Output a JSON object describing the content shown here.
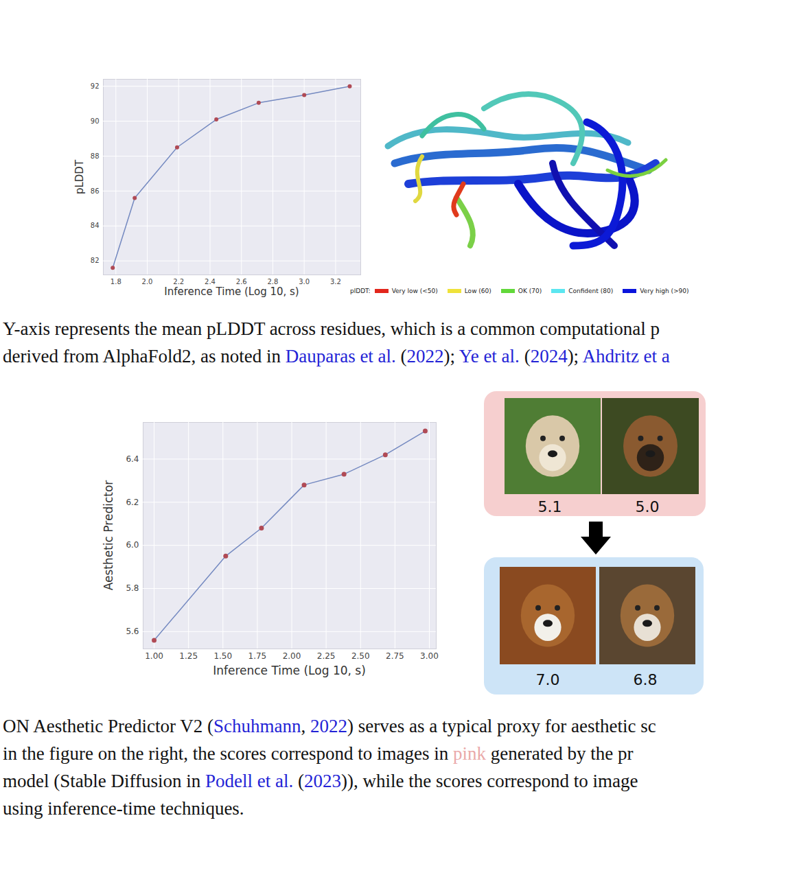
{
  "chart_data": [
    {
      "type": "line",
      "x": [
        1.78,
        1.92,
        2.19,
        2.44,
        2.71,
        3.0,
        3.29
      ],
      "values": [
        81.6,
        85.6,
        88.5,
        90.1,
        91.05,
        91.5,
        92.0
      ],
      "xlabel": "Inference Time (Log 10, s)",
      "ylabel": "pLDDT",
      "xlim": [
        1.72,
        3.36
      ],
      "ylim": [
        81.2,
        92.4
      ],
      "xticks": [
        1.8,
        {
          "value": 2,
          "label": "2.0"
        },
        2.2,
        2.4,
        2.6,
        2.8,
        {
          "value": 3,
          "label": "3.0"
        },
        3.2
      ],
      "yticks": [
        82,
        84,
        86,
        88,
        90,
        92
      ],
      "grid": true,
      "color": "#7489c0",
      "marker": "circle"
    },
    {
      "type": "line",
      "x": [
        1.0,
        1.52,
        1.78,
        2.09,
        2.38,
        2.68,
        2.97
      ],
      "values": [
        5.56,
        5.95,
        6.08,
        6.28,
        6.33,
        6.42,
        6.53
      ],
      "xlabel": "Inference Time (Log 10, s)",
      "ylabel": "Aesthetic Predictor",
      "xlim": [
        0.92,
        3.05
      ],
      "ylim": [
        5.52,
        6.57
      ],
      "xticks": [
        {
          "value": 1,
          "label": "1.00"
        },
        1.25,
        {
          "value": 1.5,
          "label": "1.50"
        },
        1.75,
        {
          "value": 2,
          "label": "2.00"
        },
        2.25,
        {
          "value": 2.5,
          "label": "2.50"
        },
        2.75,
        {
          "value": 3,
          "label": "3.00"
        }
      ],
      "yticks": [
        5.6,
        5.8,
        {
          "value": 6,
          "label": "6.0"
        },
        6.2,
        6.4
      ],
      "grid": true,
      "color": "#7489c0",
      "marker": "circle"
    }
  ],
  "protein_legend": {
    "title": "plDDT:",
    "items": [
      {
        "label": "Very low (<50)",
        "color": "#e2261c"
      },
      {
        "label": "Low (60)",
        "color": "#efe23a"
      },
      {
        "label": "OK (70)",
        "color": "#62d83a"
      },
      {
        "label": "Confident (80)",
        "color": "#5ce6f0"
      },
      {
        "label": "Very high (>90)",
        "color": "#0a14dc"
      }
    ]
  },
  "dog_panel": {
    "before_scores": [
      "5.1",
      "5.0"
    ],
    "after_scores": [
      "7.0",
      "6.8"
    ]
  },
  "captions": [
    [
      [
        {
          "text": "Y-axis represents the mean pLDDT across residues, which is a common computational p"
        }
      ],
      [
        {
          "text": "derived from AlphaFold2, as noted in "
        },
        {
          "text": "Dauparas et al.",
          "style": "cite"
        },
        {
          "text": " ("
        },
        {
          "text": "2022",
          "style": "cite"
        },
        {
          "text": "); "
        },
        {
          "text": "Ye et al.",
          "style": "cite"
        },
        {
          "text": " ("
        },
        {
          "text": "2024",
          "style": "cite"
        },
        {
          "text": "); "
        },
        {
          "text": "Ahdritz et a",
          "style": "cite"
        }
      ]
    ],
    [
      [
        {
          "text": "ON Aesthetic Predictor V2 ("
        },
        {
          "text": "Schuhmann",
          "style": "cite"
        },
        {
          "text": ", "
        },
        {
          "text": "2022",
          "style": "cite"
        },
        {
          "text": ") serves as a typical proxy for aesthetic sc"
        }
      ],
      [
        {
          "text": " in the figure on the right, the scores correspond to images in "
        },
        {
          "text": "pink",
          "style": "pink"
        },
        {
          "text": " generated by the pr"
        }
      ],
      [
        {
          "text": " model (Stable Diffusion in "
        },
        {
          "text": "Podell et al.",
          "style": "cite"
        },
        {
          "text": " ("
        },
        {
          "text": "2023",
          "style": "cite"
        },
        {
          "text": ")), while the scores correspond to image"
        }
      ],
      [
        {
          "text": "using inference-time techniques."
        }
      ]
    ]
  ]
}
